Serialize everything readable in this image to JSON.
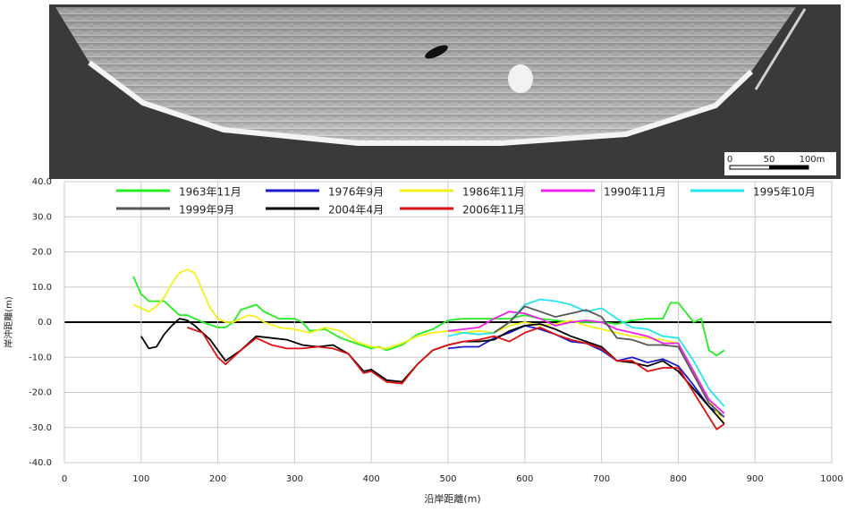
{
  "photo": {
    "scale_labels": [
      "0",
      "50",
      "100m"
    ]
  },
  "chart_data": {
    "type": "line",
    "xlabel": "沿岸距離(m)",
    "ylabel": "岸沖距離(m)",
    "xlim": [
      0,
      1000
    ],
    "xticks": [
      0,
      100,
      200,
      300,
      400,
      500,
      600,
      700,
      800,
      900,
      1000
    ],
    "ylim": [
      -40,
      40
    ],
    "yticks": [
      {
        "value": -40,
        "label": "-40.0"
      },
      {
        "value": -30,
        "label": "-30.0"
      },
      {
        "value": -20,
        "label": "-20.0"
      },
      {
        "value": -10,
        "label": "-10.0"
      },
      {
        "value": 0,
        "label": "0.0"
      },
      {
        "value": 10,
        "label": "10.0"
      },
      {
        "value": 20,
        "label": "20.0"
      },
      {
        "value": 30,
        "label": "30.0"
      },
      {
        "value": 40,
        "label": "40.0"
      }
    ],
    "grid": true,
    "series": [
      {
        "name": "1963年11月",
        "color": "#22ee22",
        "x": [
          90,
          100,
          110,
          130,
          140,
          150,
          160,
          180,
          200,
          210,
          220,
          230,
          250,
          260,
          280,
          300,
          310,
          320,
          340,
          360,
          380,
          400,
          410,
          420,
          440,
          460,
          480,
          500,
          520,
          540,
          560,
          580,
          600,
          620,
          640,
          660,
          680,
          700,
          720,
          740,
          760,
          780,
          790,
          800,
          820,
          830,
          840,
          850,
          860
        ],
        "values": [
          13,
          8,
          6,
          6,
          4,
          2,
          2,
          0,
          -1.5,
          -1.5,
          0,
          3.5,
          5,
          3,
          1,
          1,
          0,
          -2.5,
          -2,
          -4.5,
          -6,
          -7.5,
          -7,
          -8,
          -6.5,
          -3.5,
          -2,
          0.5,
          1,
          1,
          1,
          1,
          2,
          1,
          0.5,
          0,
          0,
          0,
          -0.5,
          0.5,
          1,
          1,
          5.5,
          5.5,
          0,
          1,
          -8,
          -9.5,
          -8
        ]
      },
      {
        "name": "1976年9月",
        "color": "#1a1acc",
        "x": [
          500,
          520,
          540,
          560,
          580,
          600,
          620,
          640,
          660,
          680,
          700,
          720,
          740,
          760,
          780,
          800,
          820,
          840,
          860
        ],
        "values": [
          -7.5,
          -7,
          -7,
          -4.5,
          -3,
          -1,
          -2,
          -3.5,
          -5.5,
          -6,
          -8,
          -11,
          -10,
          -11.5,
          -10.5,
          -12.5,
          -18,
          -24,
          -27
        ]
      },
      {
        "name": "1986年11月",
        "color": "#f2f21a",
        "x": [
          90,
          100,
          110,
          120,
          130,
          140,
          150,
          160,
          170,
          180,
          190,
          200,
          210,
          220,
          230,
          240,
          250,
          260,
          280,
          300,
          320,
          340,
          360,
          380,
          400,
          420,
          440,
          460,
          480,
          500,
          520,
          540,
          560,
          580,
          600,
          620,
          640,
          660,
          680,
          700,
          720,
          740,
          760,
          780,
          800,
          820,
          840,
          860
        ],
        "values": [
          5,
          4,
          3,
          4.5,
          7,
          11,
          14,
          15,
          14,
          9,
          4,
          1,
          0,
          0,
          1,
          2,
          1.5,
          0,
          -1.5,
          -2,
          -3,
          -1.5,
          -2.5,
          -5.5,
          -7,
          -7.5,
          -6,
          -4,
          -3,
          -2.5,
          -3,
          -2.5,
          -3,
          -1,
          0,
          -1,
          -0.5,
          0.5,
          -1,
          -2,
          -3,
          -4,
          -4.5,
          -5,
          -6,
          -14,
          -22,
          -29
        ]
      },
      {
        "name": "1990年11月",
        "color": "#ee22ee",
        "x": [
          500,
          520,
          540,
          560,
          580,
          600,
          620,
          640,
          660,
          680,
          700,
          720,
          740,
          760,
          780,
          800,
          820,
          840,
          860
        ],
        "values": [
          -2.5,
          -2,
          -1.5,
          1,
          3,
          2.5,
          1,
          -1,
          0,
          0.5,
          0,
          -2,
          -3,
          -4,
          -6,
          -6,
          -14,
          -22,
          -26
        ]
      },
      {
        "name": "1995年10月",
        "color": "#22e6ee",
        "x": [
          500,
          520,
          540,
          560,
          580,
          600,
          620,
          640,
          660,
          680,
          700,
          720,
          740,
          760,
          780,
          800,
          820,
          840,
          860
        ],
        "values": [
          -4,
          -3,
          -3.5,
          -3,
          0,
          5,
          6.5,
          6,
          5,
          3,
          4,
          1,
          -1.5,
          -2,
          -4,
          -4.5,
          -11,
          -19,
          -24
        ]
      },
      {
        "name": "1999年9月",
        "color": "#555555",
        "x": [
          560,
          580,
          600,
          620,
          640,
          660,
          680,
          700,
          720,
          740,
          760,
          780,
          800,
          820,
          840,
          860
        ],
        "values": [
          -3,
          0,
          4.5,
          3,
          1.5,
          2.5,
          3.5,
          1.5,
          -4.5,
          -5,
          -6.5,
          -6.5,
          -7,
          -15,
          -23,
          -27
        ]
      },
      {
        "name": "2004年4月",
        "color": "#000000",
        "x": [
          100,
          110,
          120,
          130,
          140,
          150,
          160,
          170,
          190,
          210,
          230,
          250,
          270,
          290,
          310,
          330,
          350,
          370,
          390,
          400,
          420,
          440,
          460,
          480,
          500,
          520,
          540,
          560,
          580,
          600,
          620,
          640,
          660,
          680,
          700,
          720,
          740,
          760,
          780,
          800,
          820,
          840,
          860
        ],
        "values": [
          -4,
          -7.5,
          -7,
          -3.5,
          -1,
          1,
          0.5,
          -1,
          -5,
          -11,
          -8,
          -4,
          -4.5,
          -5,
          -6.5,
          -7,
          -6.5,
          -9,
          -14,
          -13.5,
          -16.5,
          -17,
          -12,
          -8,
          -6.5,
          -5.5,
          -5.5,
          -5,
          -2.5,
          -1,
          -0.5,
          -2,
          -4,
          -5.5,
          -7,
          -11,
          -11.5,
          -12.5,
          -11,
          -14,
          -19,
          -24,
          -29
        ]
      },
      {
        "name": "2006年11月",
        "color": "#dd1111",
        "x": [
          160,
          180,
          200,
          210,
          230,
          250,
          270,
          290,
          310,
          330,
          350,
          370,
          390,
          400,
          420,
          440,
          460,
          480,
          500,
          520,
          540,
          560,
          580,
          600,
          620,
          640,
          660,
          680,
          700,
          720,
          740,
          760,
          780,
          800,
          820,
          840,
          850,
          860
        ],
        "values": [
          -1.5,
          -3,
          -10,
          -12,
          -8,
          -4.5,
          -6.5,
          -7.5,
          -7.5,
          -7,
          -7.5,
          -9,
          -14.5,
          -14,
          -17,
          -17.5,
          -12,
          -8,
          -6.5,
          -5.5,
          -5,
          -4,
          -5.5,
          -3,
          -1.5,
          -3.5,
          -5,
          -6,
          -7.5,
          -11,
          -11,
          -14,
          -13,
          -13,
          -20,
          -27,
          -30.5,
          -29
        ]
      }
    ]
  }
}
